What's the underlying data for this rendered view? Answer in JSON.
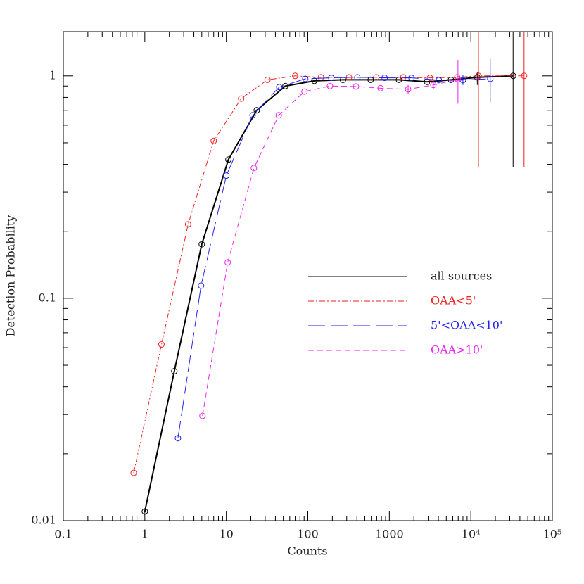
{
  "chart_data": {
    "type": "line",
    "xlabel": "Counts",
    "ylabel": "Detection Probability",
    "xscale": "log",
    "yscale": "log",
    "xlim": [
      0.1,
      100000
    ],
    "ylim": [
      0.01,
      1.58
    ],
    "xticks": [
      0.1,
      1,
      10,
      100,
      1000,
      {
        "value": 10000,
        "label": "10⁴"
      },
      {
        "value": 100000,
        "label": "10⁵"
      }
    ],
    "yticks": [
      0.01,
      0.1,
      1
    ],
    "minor_ticks": true,
    "series": [
      {
        "name": "all sources",
        "color": "#000000",
        "dash": "solid",
        "width": 2,
        "x": [
          1.0,
          2.3,
          5.0,
          10.6,
          23.6,
          53,
          120,
          270,
          590,
          1310,
          2900,
          5700,
          12000,
          33000
        ],
        "values": [
          0.011,
          0.047,
          0.175,
          0.42,
          0.7,
          0.9,
          0.95,
          0.96,
          0.96,
          0.96,
          0.94,
          0.96,
          0.985,
          1.0
        ],
        "err_low": [
          null,
          null,
          null,
          null,
          null,
          null,
          null,
          null,
          null,
          null,
          null,
          null,
          0.91,
          0.39
        ],
        "err_high": [
          null,
          null,
          null,
          null,
          null,
          null,
          null,
          null,
          null,
          null,
          null,
          null,
          1.04,
          1.58
        ]
      },
      {
        "name": "OAA<5'",
        "color": "#ee2222",
        "dash": "dashdot",
        "width": 1,
        "x": [
          0.73,
          1.6,
          3.4,
          7.0,
          15.2,
          32,
          70,
          145,
          320,
          690,
          1480,
          3150,
          6800,
          12400,
          45000
        ],
        "values": [
          0.0164,
          0.062,
          0.215,
          0.51,
          0.79,
          0.96,
          1.0,
          0.985,
          0.985,
          0.985,
          0.985,
          0.98,
          0.985,
          1.0,
          1.0
        ],
        "err_low": [
          null,
          null,
          null,
          null,
          null,
          null,
          null,
          null,
          null,
          null,
          null,
          null,
          null,
          0.39,
          0.39
        ],
        "err_high": [
          null,
          null,
          null,
          null,
          null,
          null,
          null,
          null,
          null,
          null,
          null,
          null,
          null,
          1.58,
          1.58
        ]
      },
      {
        "name": "5'<OAA<10'",
        "color": "#2222ee",
        "dash": "longdash",
        "width": 1,
        "x": [
          2.55,
          4.9,
          10,
          21,
          44.6,
          93,
          194,
          405,
          875,
          1870,
          4060,
          8000,
          17300
        ],
        "values": [
          0.0235,
          0.114,
          0.356,
          0.665,
          0.89,
          0.97,
          0.98,
          0.985,
          0.98,
          0.98,
          0.957,
          0.957,
          0.97
        ],
        "err_low": [
          null,
          null,
          null,
          null,
          null,
          null,
          null,
          null,
          null,
          null,
          null,
          0.91,
          0.76
        ],
        "err_high": [
          null,
          null,
          null,
          null,
          null,
          null,
          null,
          null,
          null,
          null,
          null,
          1.01,
          1.19
        ]
      },
      {
        "name": "OAA>10'",
        "color": "#ee22ee",
        "dash": "shortdash",
        "width": 1,
        "x": [
          5.1,
          10.4,
          21.8,
          44,
          91,
          187,
          390,
          780,
          1700,
          3470,
          6950
        ],
        "values": [
          0.0296,
          0.145,
          0.385,
          0.665,
          0.85,
          0.9,
          0.896,
          0.88,
          0.87,
          0.91,
          0.965
        ],
        "err_low": [
          null,
          null,
          null,
          null,
          null,
          null,
          null,
          null,
          0.83,
          0.87,
          0.75
        ],
        "err_high": [
          null,
          null,
          null,
          null,
          null,
          null,
          null,
          null,
          0.91,
          0.95,
          1.18
        ]
      }
    ]
  }
}
